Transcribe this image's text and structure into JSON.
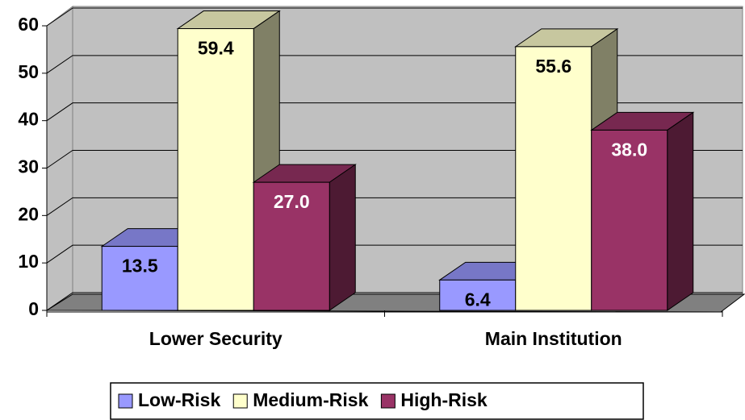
{
  "chart_data": {
    "type": "bar3d",
    "categories": [
      "Lower Security",
      "Main Institution"
    ],
    "series": [
      {
        "name": "Low-Risk",
        "color": "#9999ff",
        "values": [
          13.5,
          6.4
        ],
        "value_labels": [
          "13.5",
          "6.4"
        ]
      },
      {
        "name": "Medium-Risk",
        "color": "#ffffcc",
        "values": [
          59.4,
          55.6
        ],
        "value_labels": [
          "59.4",
          "55.6"
        ]
      },
      {
        "name": "High-Risk",
        "color": "#993366",
        "values": [
          27.0,
          38.0
        ],
        "value_labels": [
          "27.0",
          "38.0"
        ]
      }
    ],
    "ylim": [
      0,
      60
    ],
    "yticks": [
      0,
      10,
      20,
      30,
      40,
      50,
      60
    ],
    "grid": true,
    "legend": "bottom"
  }
}
